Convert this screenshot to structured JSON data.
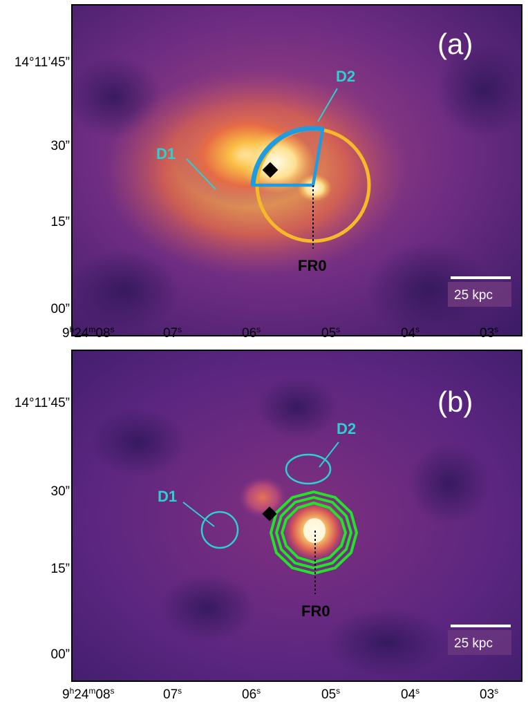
{
  "panel_a": {
    "tag": "(a)",
    "d1": "D1",
    "d2": "D2",
    "fr0": "FR0",
    "scalebar": "25 kpc"
  },
  "panel_b": {
    "tag": "(b)",
    "d1": "D1",
    "d2": "D2",
    "fr0": "FR0",
    "scalebar": "25 kpc"
  },
  "axes": {
    "dec_ticks": [
      "14°11’45”",
      "30”",
      "15”",
      "00”"
    ],
    "ra_ticks": [
      {
        "h": "9",
        "hu": "h",
        "m": "24",
        "mu": "m",
        "s": "08",
        "su": "s"
      },
      {
        "s": "07",
        "su": "s"
      },
      {
        "s": "06",
        "su": "s"
      },
      {
        "s": "05",
        "su": "s"
      },
      {
        "s": "04",
        "su": "s"
      },
      {
        "s": "03",
        "su": "s"
      }
    ]
  },
  "colors": {
    "background_dark": "#3b1862",
    "sector": "#1f9be0",
    "circle": "#f5b92a",
    "contour": "#22e22a",
    "label_cyan": "#2ecfcf"
  }
}
